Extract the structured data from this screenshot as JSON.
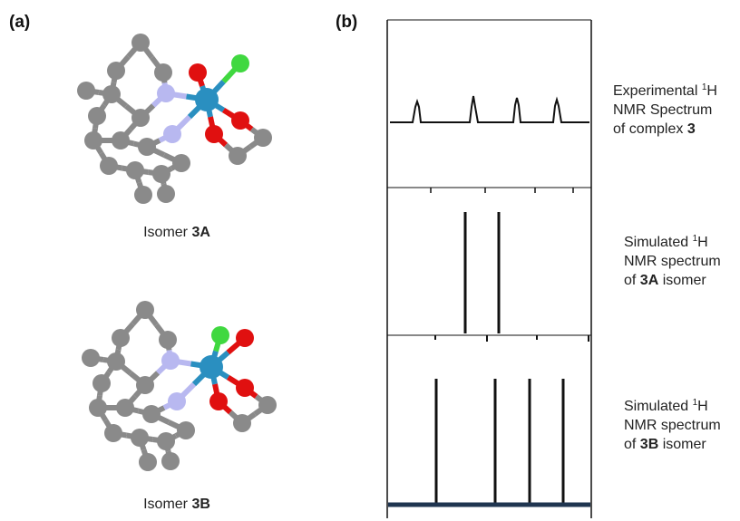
{
  "panel_a": {
    "label": "(a)",
    "isomers": [
      {
        "prefix": "Isomer ",
        "name": "3A"
      },
      {
        "prefix": "Isomer ",
        "name": "3B"
      }
    ]
  },
  "panel_b": {
    "label": "(b)",
    "captions": [
      {
        "line1": "Experimental ",
        "sup": "1",
        "nucleus": "H",
        "line2": "NMR Spectrum",
        "line3_prefix": "of complex ",
        "line3_bold": "3",
        "line3_suffix": ""
      },
      {
        "line1": "Simulated ",
        "sup": "1",
        "nucleus": "H",
        "line2": "NMR spectrum",
        "line3_prefix": "of ",
        "line3_bold": "3A",
        "line3_suffix": " isomer"
      },
      {
        "line1": "Simulated ",
        "sup": "1",
        "nucleus": "H",
        "line2": "NMR spectrum",
        "line3_prefix": "of ",
        "line3_bold": "3B",
        "line3_suffix": " isomer"
      }
    ]
  }
}
